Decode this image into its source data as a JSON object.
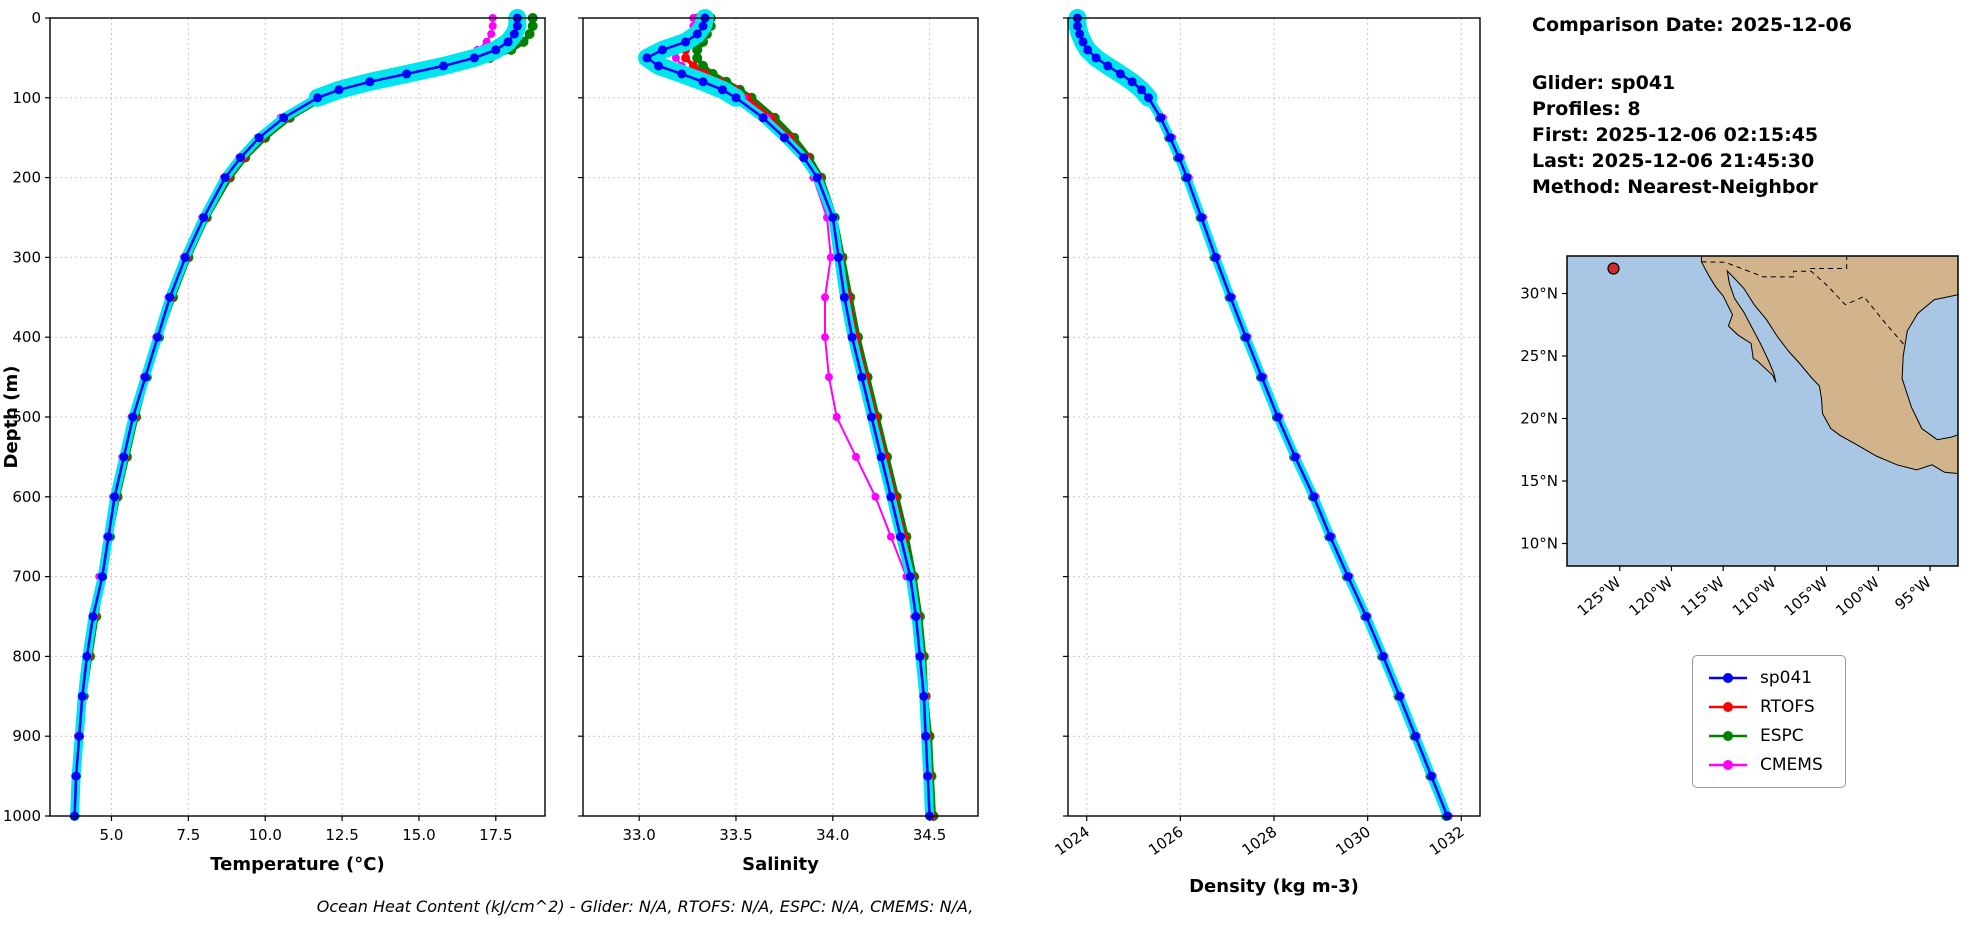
{
  "info_panel": {
    "comparison_date": "Comparison Date: 2025-12-06",
    "glider": "Glider: sp041",
    "profiles": "Profiles: 8",
    "first": "First: 2025-12-06 02:15:45",
    "last": "Last: 2025-12-06 21:45:30",
    "method": "Method: Nearest-Neighbor"
  },
  "footer_note": "Ocean Heat Content (kJ/cm^2) - Glider: N/A,  RTOFS: N/A,  ESPC: N/A,  CMEMS: N/A,",
  "legend": {
    "items": [
      {
        "label": "sp041",
        "color": "#0000ff"
      },
      {
        "label": "RTOFS",
        "color": "#ff0000"
      },
      {
        "label": "ESPC",
        "color": "#008000"
      },
      {
        "label": "CMEMS",
        "color": "#ff00ff"
      }
    ]
  },
  "map": {
    "ocean_color": "#a9c6e4",
    "land_color": "#d2b48c",
    "marker": {
      "lon": -125.6,
      "lat": 32.0,
      "color": "#d62728"
    },
    "lat_ticks": [
      {
        "value": 30,
        "label": "30°N"
      },
      {
        "value": 25,
        "label": "25°N"
      },
      {
        "value": 20,
        "label": "20°N"
      },
      {
        "value": 15,
        "label": "15°N"
      },
      {
        "value": 10,
        "label": "10°N"
      }
    ],
    "lon_ticks": [
      {
        "value": -125,
        "label": "125°W"
      },
      {
        "value": -120,
        "label": "120°W"
      },
      {
        "value": -115,
        "label": "115°W"
      },
      {
        "value": -110,
        "label": "110°W"
      },
      {
        "value": -105,
        "label": "105°W"
      },
      {
        "value": -100,
        "label": "100°W"
      },
      {
        "value": -95,
        "label": "95°W"
      }
    ]
  },
  "chart_data": [
    {
      "id": "temperature",
      "type": "line",
      "xlabel": "Temperature (°C)",
      "ylabel": "Depth (m)",
      "xlim": [
        3.0,
        19.1
      ],
      "ylim": [
        0,
        1000
      ],
      "grid": true,
      "xticks": [
        5.0,
        7.5,
        10.0,
        12.5,
        15.0,
        17.5
      ],
      "xtick_labels": [
        "5.0",
        "7.5",
        "10.0",
        "12.5",
        "15.0",
        "17.5"
      ],
      "yticks": [
        0,
        100,
        200,
        300,
        400,
        500,
        600,
        700,
        800,
        900,
        1000
      ],
      "ytick_labels": [
        "0",
        "100",
        "200",
        "300",
        "400",
        "500",
        "600",
        "700",
        "800",
        "900",
        "1000"
      ],
      "show_ytick_labels": true,
      "depth": [
        0,
        10,
        20,
        30,
        40,
        50,
        60,
        70,
        80,
        90,
        100,
        125,
        150,
        175,
        200,
        250,
        300,
        350,
        400,
        450,
        500,
        550,
        600,
        650,
        700,
        750,
        800,
        850,
        900,
        950,
        1000
      ],
      "series": [
        {
          "name": "sp041",
          "color": "#0000ff",
          "values": [
            18.2,
            18.2,
            18.1,
            17.9,
            17.5,
            16.8,
            15.8,
            14.6,
            13.4,
            12.4,
            11.7,
            10.6,
            9.8,
            9.2,
            8.7,
            8.0,
            7.4,
            6.9,
            6.5,
            6.1,
            5.7,
            5.4,
            5.1,
            4.9,
            4.7,
            4.4,
            4.2,
            4.05,
            3.95,
            3.85,
            3.8
          ]
        },
        {
          "name": "RTOFS",
          "color": "#ff0000",
          "values": [
            18.3,
            18.3,
            18.2,
            18.0,
            17.7,
            17.1,
            16.2,
            15.0,
            13.7,
            12.6,
            11.8,
            10.7,
            9.9,
            9.3,
            8.8,
            8.05,
            7.45,
            6.95,
            6.5,
            6.1,
            5.75,
            5.45,
            5.15,
            4.9,
            4.65,
            4.45,
            4.25,
            4.1,
            3.95,
            3.85,
            3.8
          ]
        },
        {
          "name": "ESPC",
          "color": "#008000",
          "values": [
            18.7,
            18.7,
            18.6,
            18.4,
            18.0,
            17.3,
            16.3,
            15.1,
            13.8,
            12.7,
            11.9,
            10.8,
            10.0,
            9.35,
            8.85,
            8.1,
            7.5,
            7.0,
            6.55,
            6.15,
            5.8,
            5.5,
            5.2,
            4.95,
            4.7,
            4.5,
            4.3,
            4.1,
            3.95,
            3.85,
            3.8
          ]
        },
        {
          "name": "CMEMS",
          "color": "#ff00ff",
          "values": [
            17.4,
            17.4,
            17.35,
            17.2,
            16.9,
            16.4,
            15.6,
            14.5,
            13.3,
            12.3,
            11.6,
            10.5,
            9.75,
            9.15,
            8.65,
            7.95,
            7.35,
            6.85,
            6.45,
            6.05,
            5.65,
            5.35,
            5.05,
            4.85,
            4.6,
            4.4,
            4.2,
            4.05,
            3.9,
            3.82,
            3.78
          ]
        }
      ]
    },
    {
      "id": "salinity",
      "type": "line",
      "xlabel": "Salinity",
      "ylabel": "",
      "xlim": [
        32.71,
        34.75
      ],
      "ylim": [
        0,
        1000
      ],
      "grid": true,
      "xticks": [
        33.0,
        33.5,
        34.0,
        34.5
      ],
      "xtick_labels": [
        "33.0",
        "33.5",
        "34.0",
        "34.5"
      ],
      "yticks": [
        0,
        100,
        200,
        300,
        400,
        500,
        600,
        700,
        800,
        900,
        1000
      ],
      "ytick_labels": [
        "0",
        "100",
        "200",
        "300",
        "400",
        "500",
        "600",
        "700",
        "800",
        "900",
        "1000"
      ],
      "show_ytick_labels": false,
      "depth": [
        0,
        10,
        20,
        30,
        40,
        50,
        60,
        70,
        80,
        90,
        100,
        125,
        150,
        175,
        200,
        250,
        300,
        350,
        400,
        450,
        500,
        550,
        600,
        650,
        700,
        750,
        800,
        850,
        900,
        950,
        1000
      ],
      "series": [
        {
          "name": "sp041",
          "color": "#0000ff",
          "values": [
            33.34,
            33.33,
            33.3,
            33.24,
            33.12,
            33.04,
            33.1,
            33.22,
            33.33,
            33.43,
            33.5,
            33.64,
            33.75,
            33.85,
            33.92,
            34.0,
            34.03,
            34.06,
            34.1,
            34.15,
            34.2,
            34.25,
            34.3,
            34.35,
            34.4,
            34.43,
            34.45,
            34.47,
            34.48,
            34.49,
            34.5
          ]
        },
        {
          "name": "RTOFS",
          "color": "#ff0000",
          "values": [
            33.3,
            33.3,
            33.28,
            33.26,
            33.24,
            33.24,
            33.28,
            33.34,
            33.42,
            33.5,
            33.56,
            33.68,
            33.78,
            33.87,
            33.93,
            34.0,
            34.04,
            34.08,
            34.12,
            34.17,
            34.22,
            34.27,
            34.32,
            34.37,
            34.41,
            34.44,
            34.46,
            34.48,
            34.49,
            34.5,
            34.51
          ]
        },
        {
          "name": "ESPC",
          "color": "#008000",
          "values": [
            33.37,
            33.37,
            33.35,
            33.33,
            33.3,
            33.3,
            33.33,
            33.38,
            33.45,
            33.52,
            33.58,
            33.7,
            33.8,
            33.88,
            33.94,
            34.01,
            34.05,
            34.09,
            34.13,
            34.18,
            34.23,
            34.28,
            34.33,
            34.38,
            34.42,
            34.45,
            34.47,
            34.48,
            34.5,
            34.51,
            34.52
          ]
        },
        {
          "name": "CMEMS",
          "color": "#ff00ff",
          "values": [
            33.28,
            33.28,
            33.26,
            33.23,
            33.2,
            33.19,
            33.22,
            33.3,
            33.4,
            33.48,
            33.54,
            33.66,
            33.76,
            33.85,
            33.9,
            33.97,
            33.99,
            33.96,
            33.96,
            33.98,
            34.02,
            34.12,
            34.22,
            34.3,
            34.38,
            34.42,
            34.45,
            34.47,
            34.48,
            34.49,
            34.5
          ]
        }
      ]
    },
    {
      "id": "density",
      "type": "line",
      "xlabel": "Density (kg m-3)",
      "ylabel": "",
      "xlim": [
        1023.6,
        1032.4
      ],
      "ylim": [
        0,
        1000
      ],
      "grid": true,
      "xticks": [
        1024,
        1026,
        1028,
        1030,
        1032
      ],
      "xtick_labels": [
        "1024",
        "1026",
        "1028",
        "1030",
        "1032"
      ],
      "yticks": [
        0,
        100,
        200,
        300,
        400,
        500,
        600,
        700,
        800,
        900,
        1000
      ],
      "ytick_labels": [
        "0",
        "100",
        "200",
        "300",
        "400",
        "500",
        "600",
        "700",
        "800",
        "900",
        "1000"
      ],
      "show_ytick_labels": false,
      "depth": [
        0,
        10,
        20,
        30,
        40,
        50,
        60,
        70,
        80,
        90,
        100,
        125,
        150,
        175,
        200,
        250,
        300,
        350,
        400,
        450,
        500,
        550,
        600,
        650,
        700,
        750,
        800,
        850,
        900,
        950,
        1000
      ],
      "series": [
        {
          "name": "sp041",
          "color": "#0000ff",
          "values": [
            1023.8,
            1023.8,
            1023.85,
            1023.92,
            1024.02,
            1024.2,
            1024.45,
            1024.72,
            1024.97,
            1025.17,
            1025.32,
            1025.58,
            1025.78,
            1025.97,
            1026.14,
            1026.45,
            1026.75,
            1027.07,
            1027.4,
            1027.74,
            1028.08,
            1028.45,
            1028.85,
            1029.2,
            1029.58,
            1029.97,
            1030.33,
            1030.68,
            1031.02,
            1031.36,
            1031.7
          ]
        },
        {
          "name": "RTOFS",
          "color": "#ff0000",
          "values": [
            1023.82,
            1023.82,
            1023.87,
            1023.94,
            1024.05,
            1024.24,
            1024.5,
            1024.77,
            1025.01,
            1025.2,
            1025.35,
            1025.6,
            1025.8,
            1025.99,
            1026.16,
            1026.47,
            1026.77,
            1027.09,
            1027.42,
            1027.76,
            1028.1,
            1028.47,
            1028.87,
            1029.22,
            1029.6,
            1029.99,
            1030.35,
            1030.7,
            1031.04,
            1031.38,
            1031.72
          ]
        },
        {
          "name": "ESPC",
          "color": "#008000",
          "values": [
            1023.78,
            1023.78,
            1023.83,
            1023.9,
            1024.0,
            1024.18,
            1024.43,
            1024.7,
            1024.95,
            1025.15,
            1025.3,
            1025.56,
            1025.76,
            1025.95,
            1026.12,
            1026.43,
            1026.73,
            1027.05,
            1027.38,
            1027.72,
            1028.06,
            1028.43,
            1028.83,
            1029.18,
            1029.56,
            1029.95,
            1030.31,
            1030.66,
            1031.0,
            1031.34,
            1031.68
          ]
        },
        {
          "name": "CMEMS",
          "color": "#ff00ff",
          "values": [
            1023.85,
            1023.85,
            1023.9,
            1023.97,
            1024.08,
            1024.27,
            1024.53,
            1024.8,
            1025.04,
            1025.23,
            1025.38,
            1025.63,
            1025.83,
            1026.01,
            1026.18,
            1026.49,
            1026.79,
            1027.11,
            1027.44,
            1027.78,
            1028.12,
            1028.49,
            1028.89,
            1029.24,
            1029.62,
            1030.0,
            1030.36,
            1030.71,
            1031.05,
            1031.39,
            1031.73
          ]
        }
      ]
    }
  ]
}
